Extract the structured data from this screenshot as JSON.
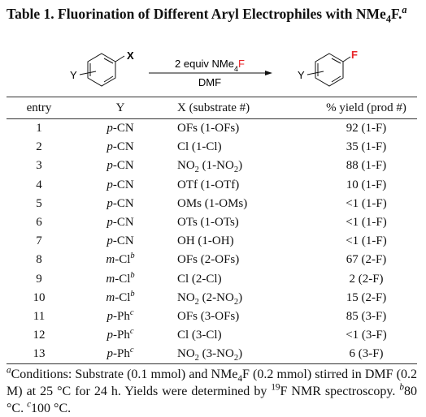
{
  "title": [
    "Table 1. Fluorination of Different Aryl Electrophiles with NMe",
    {
      "text": "4",
      "style": "sub"
    },
    "F.",
    {
      "text": "a",
      "style": "sup-italic"
    }
  ],
  "scheme": {
    "reactant_x": "X",
    "reactant_y": "Y",
    "reagent": [
      "2 equiv NMe",
      {
        "text": "4",
        "style": "sub"
      },
      {
        "text": "F",
        "color": "#e8262a"
      }
    ],
    "solvent": "DMF",
    "product_y": "Y",
    "product_f": {
      "text": "F",
      "color": "#e8262a"
    }
  },
  "table": {
    "header": [
      "entry",
      "Y",
      "X (substrate #)",
      "% yield (prod #)"
    ],
    "rows": [
      {
        "entry": "1",
        "y": [
          {
            "text": "p",
            "style": "italic"
          },
          "-CN"
        ],
        "x": [
          "OFs (1-OFs)"
        ],
        "yield": "92 (1-F)"
      },
      {
        "entry": "2",
        "y": [
          {
            "text": "p",
            "style": "italic"
          },
          "-CN"
        ],
        "x": [
          "Cl (1-Cl)"
        ],
        "yield": "35 (1-F)"
      },
      {
        "entry": "3",
        "y": [
          {
            "text": "p",
            "style": "italic"
          },
          "-CN"
        ],
        "x": [
          "NO",
          {
            "text": "2",
            "style": "sub"
          },
          " (1-NO",
          {
            "text": "2",
            "style": "sub"
          },
          ")"
        ],
        "yield": "88 (1-F)"
      },
      {
        "entry": "4",
        "y": [
          {
            "text": "p",
            "style": "italic"
          },
          "-CN"
        ],
        "x": [
          "OTf (1-OTf)"
        ],
        "yield": "10 (1-F)"
      },
      {
        "entry": "5",
        "y": [
          {
            "text": "p",
            "style": "italic"
          },
          "-CN"
        ],
        "x": [
          "OMs (1-OMs)"
        ],
        "yield": "<1 (1-F)"
      },
      {
        "entry": "6",
        "y": [
          {
            "text": "p",
            "style": "italic"
          },
          "-CN"
        ],
        "x": [
          "OTs (1-OTs)"
        ],
        "yield": "<1 (1-F)"
      },
      {
        "entry": "7",
        "y": [
          {
            "text": "p",
            "style": "italic"
          },
          "-CN"
        ],
        "x": [
          "OH (1-OH)"
        ],
        "yield": "<1 (1-F)"
      },
      {
        "entry": "8",
        "y": [
          {
            "text": "m",
            "style": "italic"
          },
          "-Cl",
          {
            "text": "b",
            "style": "sup-italic"
          }
        ],
        "x": [
          "OFs (2-OFs)"
        ],
        "yield": "67 (2-F)"
      },
      {
        "entry": "9",
        "y": [
          {
            "text": "m",
            "style": "italic"
          },
          "-Cl",
          {
            "text": "b",
            "style": "sup-italic"
          }
        ],
        "x": [
          "Cl (2-Cl)"
        ],
        "yield": "2 (2-F)"
      },
      {
        "entry": "10",
        "y": [
          {
            "text": "m",
            "style": "italic"
          },
          "-Cl",
          {
            "text": "b",
            "style": "sup-italic"
          }
        ],
        "x": [
          "NO",
          {
            "text": "2",
            "style": "sub"
          },
          " (2-NO",
          {
            "text": "2",
            "style": "sub"
          },
          ")"
        ],
        "yield": "15 (2-F)"
      },
      {
        "entry": "11",
        "y": [
          {
            "text": "p",
            "style": "italic"
          },
          "-Ph",
          {
            "text": "c",
            "style": "sup-italic"
          }
        ],
        "x": [
          "OFs (3-OFs)"
        ],
        "yield": "85 (3-F)"
      },
      {
        "entry": "12",
        "y": [
          {
            "text": "p",
            "style": "italic"
          },
          "-Ph",
          {
            "text": "c",
            "style": "sup-italic"
          }
        ],
        "x": [
          "Cl (3-Cl)"
        ],
        "yield": "<1 (3-F)"
      },
      {
        "entry": "13",
        "y": [
          {
            "text": "p",
            "style": "italic"
          },
          "-Ph",
          {
            "text": "c",
            "style": "sup-italic"
          }
        ],
        "x": [
          "NO",
          {
            "text": "2",
            "style": "sub"
          },
          " (3-NO",
          {
            "text": "2",
            "style": "sub"
          },
          ")"
        ],
        "yield": "6 (3-F)"
      }
    ]
  },
  "footnote": [
    {
      "text": "a",
      "style": "sup-italic"
    },
    "Conditions: Substrate (0.1 mmol) and NMe",
    {
      "text": "4",
      "style": "sub"
    },
    "F (0.2 mmol) stirred in DMF (0.2 M) at 25 °C for 24 h. Yields were determined by ",
    {
      "text": "19",
      "style": "sup"
    },
    "F NMR spectroscopy. ",
    {
      "text": "b",
      "style": "sup-italic"
    },
    "80 °C. ",
    {
      "text": "c",
      "style": "sup-italic"
    },
    "100 °C."
  ]
}
